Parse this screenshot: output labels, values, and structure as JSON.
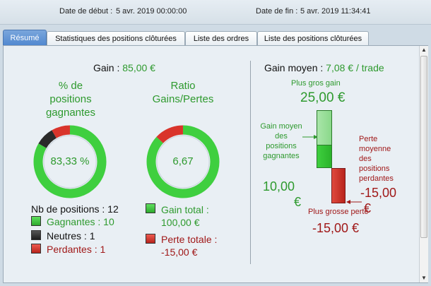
{
  "header": {
    "start_label": "Date de début :",
    "start_value": "5 avr. 2019 00:00:00",
    "end_label": "Date de fin :",
    "end_value": "5 avr. 2019 11:34:41"
  },
  "tabs": [
    {
      "label": "Résumé",
      "active": true
    },
    {
      "label": "Statistiques des positions clôturées",
      "active": false
    },
    {
      "label": "Liste des ordres",
      "active": false
    },
    {
      "label": "Liste des positions clôturées",
      "active": false
    }
  ],
  "summary": {
    "gain_label": "Gain :",
    "gain_value": "85,00 €",
    "win_pct_title_line1": "% de",
    "win_pct_title_line2": "positions",
    "win_pct_title_line3": "gagnantes",
    "win_pct_value": "83,33 %",
    "win_fraction": 0.8333,
    "ratio_title_line1": "Ratio",
    "ratio_title_line2": "Gains/Pertes",
    "ratio_value": "6,67",
    "ratio_fraction": 0.8696,
    "positions_label": "Nb de positions : 12",
    "winners_label": "Gagnantes : 10",
    "neutral_label": "Neutres : 1",
    "losers_label": "Perdantes : 1",
    "total_gain_line1": "Gain total :",
    "total_gain_line2": "100,00 €",
    "total_loss_line1": "Perte totale :",
    "total_loss_line2": "-15,00 €"
  },
  "avg": {
    "title_label": "Gain moyen :",
    "title_value": "7,08 € / trade",
    "max_gain_label": "Plus gros gain",
    "max_gain_value": "25,00 €",
    "avg_win_lines": [
      "Gain moyen",
      "des",
      "positions",
      "gagnantes"
    ],
    "avg_win_value_line1": "10,00",
    "avg_win_value_line2": "€",
    "avg_loss_lines": [
      "Perte",
      "moyenne",
      "des",
      "positions",
      "perdantes"
    ],
    "avg_loss_value_line1": "-15,00",
    "avg_loss_value_line2": "€",
    "max_loss_label": "Plus grosse perte",
    "max_loss_value": "-15,00 €"
  },
  "colors": {
    "green": "#2e9a2e",
    "red": "#a01818",
    "ring_green": "#3fcf3f",
    "ring_red": "#d9342b",
    "ring_dark": "#2a2a2a"
  }
}
